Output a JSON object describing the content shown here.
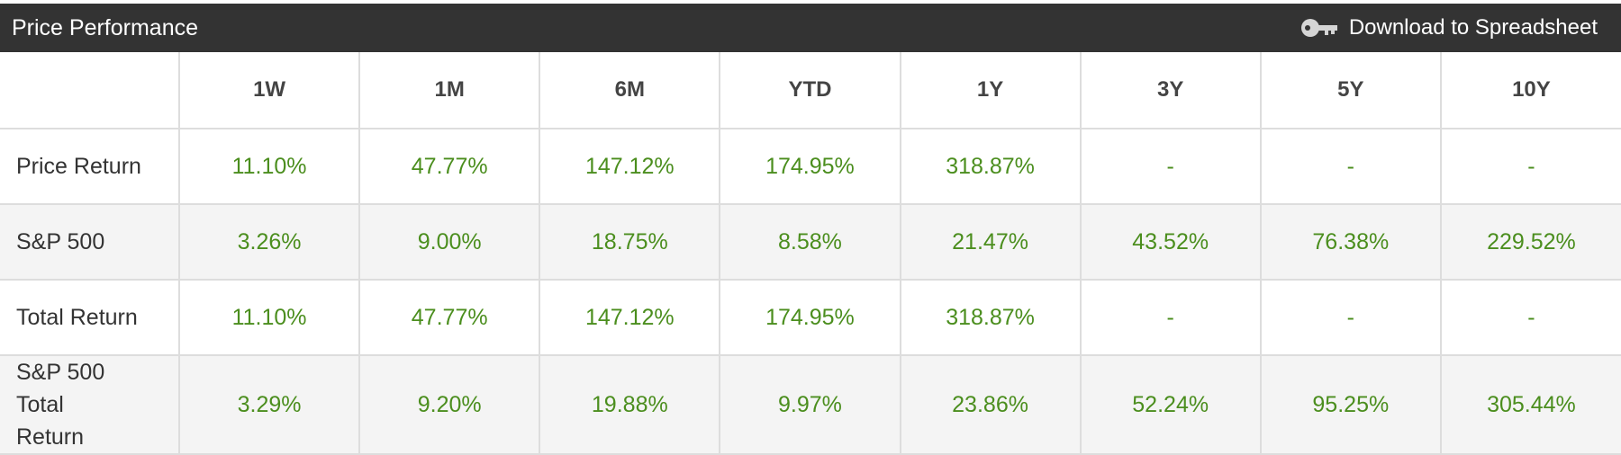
{
  "header": {
    "title": "Price Performance",
    "download_label": "Download to Spreadsheet",
    "download_icon": "key-icon"
  },
  "table": {
    "columns": [
      "",
      "1W",
      "1M",
      "6M",
      "YTD",
      "1Y",
      "3Y",
      "5Y",
      "10Y"
    ],
    "rows": [
      {
        "label": "Price Return",
        "values": [
          "11.10%",
          "47.77%",
          "147.12%",
          "174.95%",
          "318.87%",
          "-",
          "-",
          "-"
        ]
      },
      {
        "label": "S&P 500",
        "values": [
          "3.26%",
          "9.00%",
          "18.75%",
          "8.58%",
          "21.47%",
          "43.52%",
          "76.38%",
          "229.52%"
        ]
      },
      {
        "label": "Total Return",
        "values": [
          "11.10%",
          "47.77%",
          "147.12%",
          "174.95%",
          "318.87%",
          "-",
          "-",
          "-"
        ]
      },
      {
        "label": "S&P 500 Total Return",
        "values": [
          "3.29%",
          "9.20%",
          "19.88%",
          "9.97%",
          "23.86%",
          "52.24%",
          "95.25%",
          "305.44%"
        ]
      }
    ]
  },
  "colors": {
    "title_bar": "#333333",
    "value_green": "#4b8e1e",
    "stripe": "#f4f4f4",
    "border": "#dddddd"
  }
}
